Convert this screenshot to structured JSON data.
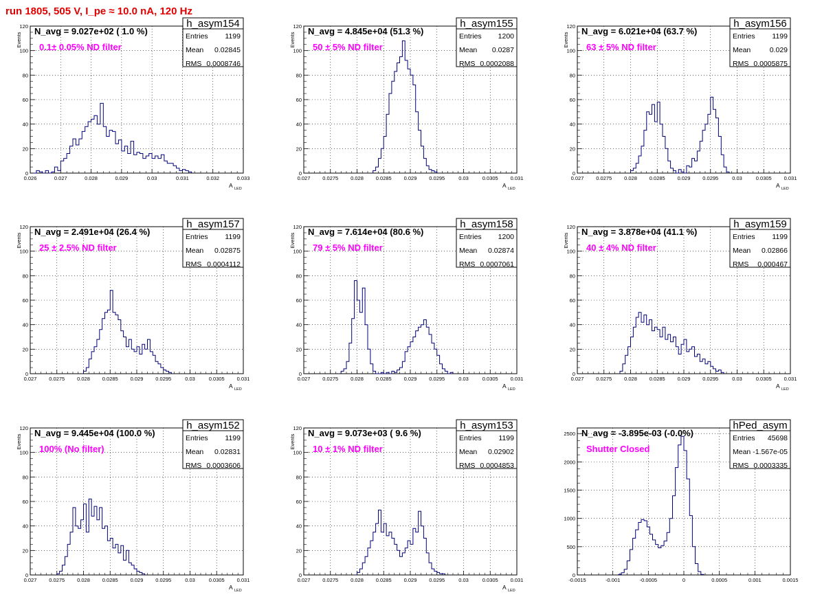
{
  "page_title": "run 1805,   505 V, I_pe ≈ 10.0 nA, 120 Hz",
  "colors": {
    "line": "#00007a",
    "title_text": "#e00000",
    "filter_text": "#ff00ff",
    "grid": "#000000"
  },
  "chart_data": [
    {
      "type": "histogram",
      "name": "h_asym154",
      "navg": "N_avg = 9.027e+02 ( 1.0 %)",
      "filter": "0.1± 0.05% ND filter",
      "stats": [
        [
          "Entries",
          "1199"
        ],
        [
          "Mean",
          "0.02845"
        ],
        [
          "RMS",
          "0.0008746"
        ]
      ],
      "ylabel": "Events",
      "xlabel": "A",
      "xlabel_sub": "LED",
      "xlim": [
        0.026,
        0.033
      ],
      "ylim": [
        0,
        120
      ],
      "xticks": [
        0.026,
        0.027,
        0.028,
        0.029,
        0.03,
        0.031,
        0.032,
        0.033
      ],
      "xtick_labels": [
        "0.026",
        "0.027",
        "0.028",
        "0.029",
        "0.03",
        "0.031",
        "0.032",
        "0.033"
      ],
      "yticks": [
        0,
        20,
        40,
        60,
        80,
        100,
        120
      ],
      "ytick_labels": [
        "0",
        "20",
        "40",
        "60",
        "80",
        "100",
        "120"
      ],
      "bin_start": 0.0261,
      "bin_width": 0.0001,
      "values": [
        0,
        2,
        1,
        0,
        2,
        0,
        1,
        5,
        2,
        10,
        12,
        16,
        22,
        28,
        23,
        28,
        34,
        38,
        42,
        44,
        47,
        40,
        57,
        38,
        30,
        35,
        34,
        24,
        27,
        18,
        22,
        16,
        26,
        15,
        17,
        16,
        12,
        14,
        16,
        12,
        14,
        12,
        15,
        10,
        8,
        8,
        6,
        4,
        2,
        3,
        2,
        1
      ]
    },
    {
      "type": "histogram",
      "name": "h_asym155",
      "navg": "N_avg = 4.845e+04 (51.3 %)",
      "filter": "50 ± 5% ND filter",
      "stats": [
        [
          "Entries",
          "1200"
        ],
        [
          "Mean",
          "0.0287"
        ],
        [
          "RMS",
          "0.0002088"
        ]
      ],
      "ylabel": "Events",
      "xlabel": "A",
      "xlabel_sub": "LED",
      "xlim": [
        0.027,
        0.031
      ],
      "ylim": [
        0,
        120
      ],
      "xticks": [
        0.027,
        0.0275,
        0.028,
        0.0285,
        0.029,
        0.0295,
        0.03,
        0.0305,
        0.031
      ],
      "xtick_labels": [
        "0.027",
        "0.0275",
        "0.028",
        "0.0285",
        "0.029",
        "0.0295",
        "0.03",
        "0.0305",
        "0.031"
      ],
      "yticks": [
        0,
        20,
        40,
        60,
        80,
        100,
        120
      ],
      "ytick_labels": [
        "0",
        "20",
        "40",
        "60",
        "80",
        "100",
        "120"
      ],
      "bin_start": 0.0283,
      "bin_width": 5e-05,
      "values": [
        2,
        5,
        12,
        20,
        30,
        48,
        65,
        75,
        83,
        90,
        95,
        108,
        92,
        85,
        80,
        72,
        50,
        35,
        22,
        12,
        6,
        3,
        2,
        1
      ]
    },
    {
      "type": "histogram",
      "name": "h_asym156",
      "navg": "N_avg = 6.021e+04 (63.7 %)",
      "filter": "63 ± 5% ND filter",
      "stats": [
        [
          "Entries",
          "1199"
        ],
        [
          "Mean",
          "0.029"
        ],
        [
          "RMS",
          "0.0005875"
        ]
      ],
      "ylabel": "Events",
      "xlabel": "A",
      "xlabel_sub": "LED",
      "xlim": [
        0.027,
        0.031
      ],
      "ylim": [
        0,
        120
      ],
      "xticks": [
        0.027,
        0.0275,
        0.028,
        0.0285,
        0.029,
        0.0295,
        0.03,
        0.0305,
        0.031
      ],
      "xtick_labels": [
        "0.027",
        "0.0275",
        "0.028",
        "0.0285",
        "0.029",
        "0.0295",
        "0.03",
        "0.0305",
        "0.031"
      ],
      "yticks": [
        0,
        20,
        40,
        60,
        80,
        100,
        120
      ],
      "ytick_labels": [
        "0",
        "20",
        "40",
        "60",
        "80",
        "100",
        "120"
      ],
      "bin_start": 0.028,
      "bin_width": 5e-05,
      "values": [
        2,
        4,
        8,
        14,
        22,
        35,
        50,
        48,
        56,
        42,
        58,
        40,
        30,
        20,
        10,
        4,
        2,
        0,
        3,
        1,
        0,
        6,
        5,
        12,
        10,
        18,
        26,
        35,
        40,
        48,
        62,
        52,
        45,
        30,
        15,
        5,
        1
      ]
    },
    {
      "type": "histogram",
      "name": "h_asym157",
      "navg": "N_avg = 2.491e+04 (26.4 %)",
      "filter": "25 ± 2.5% ND filter",
      "stats": [
        [
          "Entries",
          "1199"
        ],
        [
          "Mean",
          "0.02875"
        ],
        [
          "RMS",
          "0.0004112"
        ]
      ],
      "ylabel": "Events",
      "xlabel": "A",
      "xlabel_sub": "LED",
      "xlim": [
        0.027,
        0.031
      ],
      "ylim": [
        0,
        120
      ],
      "xticks": [
        0.027,
        0.0275,
        0.028,
        0.0285,
        0.029,
        0.0295,
        0.03,
        0.0305,
        0.031
      ],
      "xtick_labels": [
        "0.027",
        "0.0275",
        "0.028",
        "0.0285",
        "0.029",
        "0.0295",
        "0.03",
        "0.0305",
        "0.031"
      ],
      "yticks": [
        0,
        20,
        40,
        60,
        80,
        100,
        120
      ],
      "ytick_labels": [
        "0",
        "20",
        "40",
        "60",
        "80",
        "100",
        "120"
      ],
      "bin_start": 0.028,
      "bin_width": 5e-05,
      "values": [
        2,
        5,
        12,
        18,
        22,
        28,
        36,
        45,
        50,
        52,
        68,
        50,
        48,
        44,
        35,
        30,
        22,
        28,
        20,
        18,
        22,
        16,
        24,
        20,
        28,
        18,
        15,
        10,
        8,
        5,
        3,
        2,
        1
      ]
    },
    {
      "type": "histogram",
      "name": "h_asym158",
      "navg": "N_avg = 7.614e+04 (80.6 %)",
      "filter": "79 ± 5% ND filter",
      "stats": [
        [
          "Entries",
          "1200"
        ],
        [
          "Mean",
          "0.02874"
        ],
        [
          "RMS",
          "0.0007061"
        ]
      ],
      "ylabel": "Events",
      "xlabel": "A",
      "xlabel_sub": "LED",
      "xlim": [
        0.027,
        0.031
      ],
      "ylim": [
        0,
        120
      ],
      "xticks": [
        0.027,
        0.0275,
        0.028,
        0.0285,
        0.029,
        0.0295,
        0.03,
        0.0305,
        0.031
      ],
      "xtick_labels": [
        "0.027",
        "0.0275",
        "0.028",
        "0.0285",
        "0.029",
        "0.0295",
        "0.03",
        "0.0305",
        "0.031"
      ],
      "yticks": [
        0,
        20,
        40,
        60,
        80,
        100,
        120
      ],
      "ytick_labels": [
        "0",
        "20",
        "40",
        "60",
        "80",
        "100",
        "120"
      ],
      "bin_start": 0.0277,
      "bin_width": 5e-05,
      "values": [
        2,
        4,
        10,
        25,
        45,
        76,
        60,
        50,
        70,
        40,
        20,
        8,
        2,
        0,
        0,
        1,
        0,
        1,
        0,
        2,
        1,
        3,
        5,
        10,
        18,
        22,
        26,
        30,
        35,
        38,
        40,
        44,
        38,
        32,
        25,
        20,
        15,
        8,
        4,
        2,
        0,
        1
      ]
    },
    {
      "type": "histogram",
      "name": "h_asym159",
      "navg": "N_avg = 3.878e+04 (41.1 %)",
      "filter": "40 ± 4% ND filter",
      "stats": [
        [
          "Entries",
          "1199"
        ],
        [
          "Mean",
          "0.02866"
        ],
        [
          "RMS",
          "0.000467"
        ]
      ],
      "ylabel": "Events",
      "xlabel": "A",
      "xlabel_sub": "LED",
      "xlim": [
        0.027,
        0.031
      ],
      "ylim": [
        0,
        120
      ],
      "xticks": [
        0.027,
        0.0275,
        0.028,
        0.0285,
        0.029,
        0.0295,
        0.03,
        0.0305,
        0.031
      ],
      "xtick_labels": [
        "0.027",
        "0.0275",
        "0.028",
        "0.0285",
        "0.029",
        "0.0295",
        "0.03",
        "0.0305",
        "0.031"
      ],
      "yticks": [
        0,
        20,
        40,
        60,
        80,
        100,
        120
      ],
      "ytick_labels": [
        "0",
        "20",
        "40",
        "60",
        "80",
        "100",
        "120"
      ],
      "bin_start": 0.0278,
      "bin_width": 5e-05,
      "values": [
        2,
        8,
        15,
        22,
        30,
        38,
        46,
        50,
        42,
        48,
        40,
        44,
        35,
        38,
        36,
        30,
        38,
        28,
        32,
        26,
        30,
        22,
        16,
        24,
        28,
        18,
        20,
        22,
        14,
        16,
        10,
        12,
        8,
        10,
        6,
        4,
        2,
        3,
        1
      ]
    },
    {
      "type": "histogram",
      "name": "h_asym152",
      "navg": "N_avg = 9.445e+04 (100.0 %)",
      "filter": "100% (No filter)",
      "stats": [
        [
          "Entries",
          "1199"
        ],
        [
          "Mean",
          "0.02831"
        ],
        [
          "RMS",
          "0.0003606"
        ]
      ],
      "ylabel": "Events",
      "xlabel": "A",
      "xlabel_sub": "LED",
      "xlim": [
        0.027,
        0.031
      ],
      "ylim": [
        0,
        120
      ],
      "xticks": [
        0.027,
        0.0275,
        0.028,
        0.0285,
        0.029,
        0.0295,
        0.03,
        0.0305,
        0.031
      ],
      "xtick_labels": [
        "0.027",
        "0.0275",
        "0.028",
        "0.0285",
        "0.029",
        "0.0295",
        "0.03",
        "0.0305",
        "0.031"
      ],
      "yticks": [
        0,
        20,
        40,
        60,
        80,
        100,
        120
      ],
      "ytick_labels": [
        "0",
        "20",
        "40",
        "60",
        "80",
        "100",
        "120"
      ],
      "bin_start": 0.0275,
      "bin_width": 5e-05,
      "values": [
        1,
        3,
        8,
        15,
        25,
        35,
        55,
        40,
        38,
        45,
        58,
        35,
        62,
        48,
        56,
        45,
        55,
        38,
        40,
        28,
        30,
        22,
        25,
        18,
        24,
        12,
        20,
        10,
        8,
        5,
        3,
        2,
        1
      ]
    },
    {
      "type": "histogram",
      "name": "h_asym153",
      "navg": "N_avg = 9.073e+03 ( 9.6 %)",
      "filter": "10 ± 1% ND filter",
      "stats": [
        [
          "Entries",
          "1199"
        ],
        [
          "Mean",
          "0.02902"
        ],
        [
          "RMS",
          "0.0004853"
        ]
      ],
      "ylabel": "Events",
      "xlabel": "A",
      "xlabel_sub": "LED",
      "xlim": [
        0.027,
        0.031
      ],
      "ylim": [
        0,
        120
      ],
      "xticks": [
        0.027,
        0.0275,
        0.028,
        0.0285,
        0.029,
        0.0295,
        0.03,
        0.0305,
        0.031
      ],
      "xtick_labels": [
        "0.027",
        "0.0275",
        "0.028",
        "0.0285",
        "0.029",
        "0.0295",
        "0.03",
        "0.0305",
        "0.031"
      ],
      "yticks": [
        0,
        20,
        40,
        60,
        80,
        100,
        120
      ],
      "ytick_labels": [
        "0",
        "20",
        "40",
        "60",
        "80",
        "100",
        "120"
      ],
      "bin_start": 0.028,
      "bin_width": 5e-05,
      "values": [
        2,
        5,
        10,
        15,
        22,
        28,
        35,
        42,
        53,
        35,
        42,
        32,
        35,
        30,
        25,
        20,
        15,
        18,
        22,
        28,
        25,
        38,
        35,
        52,
        40,
        30,
        18,
        10,
        5,
        3,
        2,
        1,
        1
      ]
    },
    {
      "type": "histogram",
      "name": "hPed_asym",
      "navg": "N_avg = -3.895e-03 (-0.0%)",
      "filter": "Shutter Closed",
      "stats": [
        [
          "Entries",
          "45698"
        ],
        [
          "Mean",
          "-1.567e-05"
        ],
        [
          "RMS",
          "0.0003335"
        ]
      ],
      "ylabel": "",
      "xlabel": "",
      "xlabel_sub": "",
      "xlim": [
        -0.0015,
        0.0015
      ],
      "ylim": [
        0,
        2600
      ],
      "xticks": [
        -0.0015,
        -0.001,
        -0.0005,
        0,
        0.0005,
        0.001,
        0.0015
      ],
      "xtick_labels": [
        "-0.0015",
        "-0.001",
        "-0.0005",
        "0",
        "0.0005",
        "0.001",
        "0.0015"
      ],
      "yticks": [
        0,
        500,
        1000,
        1500,
        2000,
        2500
      ],
      "ytick_labels": [
        "0",
        "500",
        "1000",
        "1500",
        "2000",
        "2500"
      ],
      "bin_start": -0.00092,
      "bin_width": 4e-05,
      "values": [
        10,
        40,
        100,
        250,
        450,
        650,
        800,
        930,
        980,
        960,
        850,
        720,
        620,
        540,
        480,
        520,
        600,
        750,
        1000,
        1400,
        1900,
        2300,
        2450,
        2200,
        1700,
        1050,
        500,
        200,
        60,
        10
      ]
    }
  ]
}
